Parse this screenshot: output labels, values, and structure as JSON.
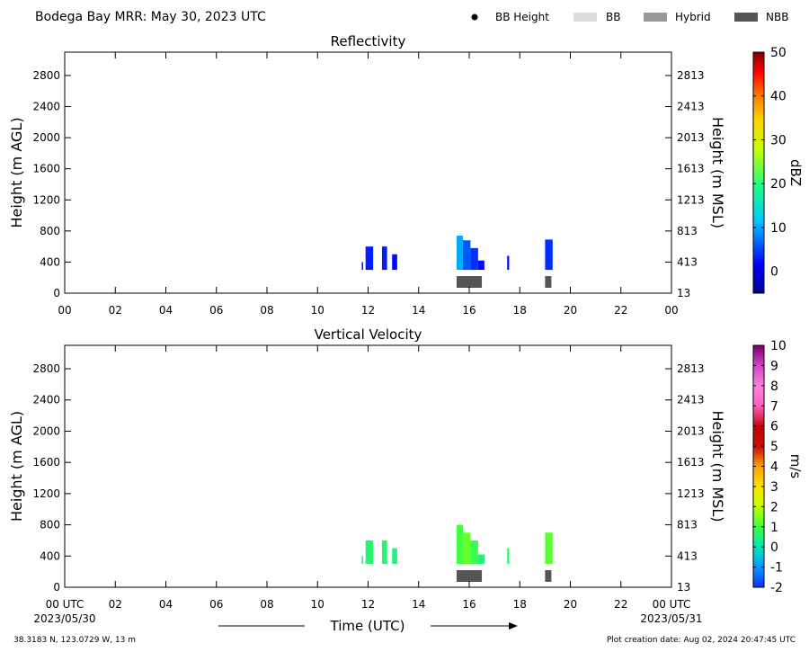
{
  "header": {
    "title": "Bodega Bay MRR:  May 30, 2023 UTC",
    "legend": [
      {
        "label": "BB Height",
        "kind": "dot",
        "color": "#000000"
      },
      {
        "label": "BB",
        "kind": "box",
        "color": "#dcdcdc"
      },
      {
        "label": "Hybrid",
        "kind": "box",
        "color": "#999999"
      },
      {
        "label": "NBB",
        "kind": "box",
        "color": "#555555"
      }
    ]
  },
  "footer": {
    "location": "38.3183 N, 123.0729 W, 13 m",
    "creation": "Plot creation date: Aug 02, 2024 20:47:45 UTC",
    "xlabel": "Time (UTC)",
    "start_tick": "00 UTC",
    "start_date": "2023/05/30",
    "end_tick": "00 UTC",
    "end_date": "2023/05/31"
  },
  "chart_data": [
    {
      "type": "heatmap",
      "title": "Reflectivity",
      "ylabel": "Height (m AGL)",
      "ylabel_right": "Height (m MSL)",
      "xlim": [
        0,
        24
      ],
      "ylim": [
        0,
        3100
      ],
      "x_ticks": [
        "00",
        "02",
        "04",
        "06",
        "08",
        "10",
        "12",
        "14",
        "16",
        "18",
        "20",
        "22",
        "00"
      ],
      "y_ticks": [
        0,
        400,
        800,
        1200,
        1600,
        2000,
        2400,
        2800
      ],
      "y_ticks_right": [
        13,
        413,
        813,
        1213,
        1613,
        2013,
        2413,
        2813
      ],
      "colorbar": {
        "label": "dBZ",
        "min": -5,
        "max": 50,
        "ticks": [
          0,
          10,
          20,
          30,
          40,
          50
        ]
      },
      "echo_columns": [
        {
          "start": 11.75,
          "end": 11.8,
          "bottom": 300,
          "top": 400,
          "value": 2
        },
        {
          "start": 11.9,
          "end": 12.2,
          "bottom": 300,
          "top": 600,
          "value": 3
        },
        {
          "start": 12.55,
          "end": 12.75,
          "bottom": 300,
          "top": 600,
          "value": 3
        },
        {
          "start": 12.95,
          "end": 13.15,
          "bottom": 300,
          "top": 500,
          "value": 2
        },
        {
          "start": 15.5,
          "end": 15.75,
          "bottom": 300,
          "top": 740,
          "value": 10
        },
        {
          "start": 15.75,
          "end": 16.05,
          "bottom": 300,
          "top": 680,
          "value": 6
        },
        {
          "start": 16.05,
          "end": 16.35,
          "bottom": 300,
          "top": 580,
          "value": 4
        },
        {
          "start": 16.35,
          "end": 16.6,
          "bottom": 300,
          "top": 420,
          "value": 2
        },
        {
          "start": 17.5,
          "end": 17.58,
          "bottom": 300,
          "top": 480,
          "value": 2
        },
        {
          "start": 19.0,
          "end": 19.3,
          "bottom": 300,
          "top": 690,
          "value": 4
        }
      ],
      "bright_band": [
        {
          "start": 15.5,
          "end": 16.5,
          "type": "NBB"
        },
        {
          "start": 19.0,
          "end": 19.25,
          "type": "NBB"
        }
      ]
    },
    {
      "type": "heatmap",
      "title": "Vertical Velocity",
      "ylabel": "Height (m AGL)",
      "ylabel_right": "Height (m MSL)",
      "xlim": [
        0,
        24
      ],
      "ylim": [
        0,
        3100
      ],
      "x_ticks": [
        "",
        "02",
        "04",
        "06",
        "08",
        "10",
        "12",
        "14",
        "16",
        "18",
        "20",
        "22",
        ""
      ],
      "y_ticks": [
        0,
        400,
        800,
        1200,
        1600,
        2000,
        2400,
        2800
      ],
      "y_ticks_right": [
        13,
        413,
        813,
        1213,
        1613,
        2013,
        2413,
        2813
      ],
      "colorbar": {
        "label": "m/s",
        "min": -2,
        "max": 10,
        "ticks": [
          -2,
          -1,
          0,
          1,
          2,
          3,
          4,
          5,
          6,
          7,
          8,
          9,
          10
        ]
      },
      "echo_columns": [
        {
          "start": 11.75,
          "end": 11.8,
          "bottom": 300,
          "top": 400,
          "value": 0.3
        },
        {
          "start": 11.9,
          "end": 12.2,
          "bottom": 300,
          "top": 600,
          "value": 0.6
        },
        {
          "start": 12.55,
          "end": 12.75,
          "bottom": 300,
          "top": 600,
          "value": 0.6
        },
        {
          "start": 12.95,
          "end": 13.15,
          "bottom": 300,
          "top": 500,
          "value": 0.5
        },
        {
          "start": 15.5,
          "end": 15.75,
          "bottom": 300,
          "top": 800,
          "value": 1.0
        },
        {
          "start": 15.75,
          "end": 16.05,
          "bottom": 300,
          "top": 700,
          "value": 1.3
        },
        {
          "start": 16.05,
          "end": 16.35,
          "bottom": 300,
          "top": 600,
          "value": 0.9
        },
        {
          "start": 16.35,
          "end": 16.6,
          "bottom": 300,
          "top": 420,
          "value": 0.5
        },
        {
          "start": 17.5,
          "end": 17.58,
          "bottom": 300,
          "top": 500,
          "value": 0.6
        },
        {
          "start": 19.0,
          "end": 19.3,
          "bottom": 300,
          "top": 700,
          "value": 1.2
        }
      ],
      "bright_band": [
        {
          "start": 15.5,
          "end": 16.5,
          "type": "NBB"
        },
        {
          "start": 19.0,
          "end": 19.25,
          "type": "NBB"
        }
      ]
    }
  ]
}
